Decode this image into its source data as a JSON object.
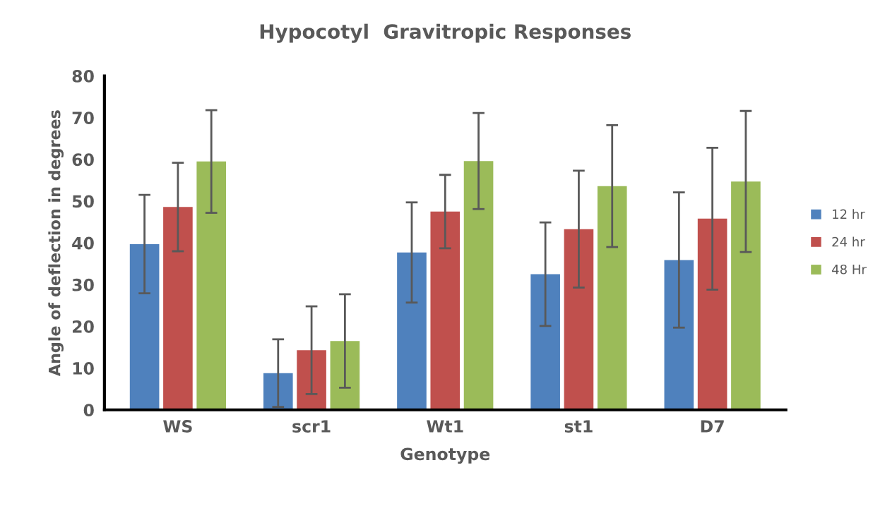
{
  "chart_data": {
    "type": "bar",
    "title": "Hypocotyl  Gravitropic Responses",
    "xlabel": "Genotype",
    "ylabel": "Angle of deflection in degrees",
    "categories": [
      "WS",
      "scr1",
      "Wt1",
      "st1",
      "D7"
    ],
    "series": [
      {
        "name": "12 hr",
        "color": "#4f81bd",
        "values": [
          39.7,
          8.8,
          37.7,
          32.5,
          35.9
        ],
        "errors": [
          11.8,
          8.1,
          12.0,
          12.4,
          16.2
        ]
      },
      {
        "name": "24 hr",
        "color": "#c0504d",
        "values": [
          48.6,
          14.3,
          47.5,
          43.3,
          45.8
        ],
        "errors": [
          10.6,
          10.5,
          8.8,
          14.0,
          17.0
        ]
      },
      {
        "name": "48 Hr",
        "color": "#9bbb59",
        "values": [
          59.5,
          16.5,
          59.6,
          53.6,
          54.7
        ],
        "errors": [
          12.3,
          11.2,
          11.5,
          14.6,
          16.9
        ]
      }
    ],
    "ylim": [
      0,
      80
    ],
    "yticks": [
      0,
      10,
      20,
      30,
      40,
      50,
      60,
      70,
      80
    ],
    "grid": false,
    "legend": "right"
  }
}
